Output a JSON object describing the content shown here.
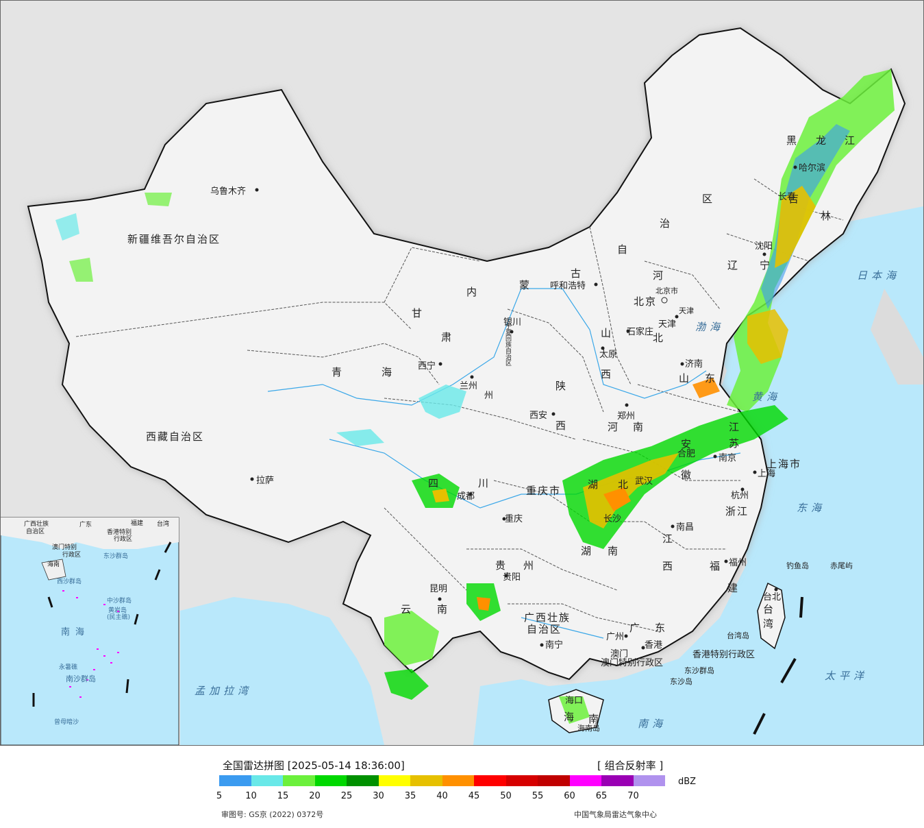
{
  "footer": {
    "title": "全国雷达拼图 [2025-05-14 18:36:00]",
    "product": "[ 组合反射率 ]",
    "unit": "dBZ",
    "approval": "审图号: GS京 (2022) 0372号",
    "source": "中国气象局雷达气象中心"
  },
  "legend": {
    "colors": [
      "#3b9bf0",
      "#69e8e8",
      "#6cf03c",
      "#00d800",
      "#009000",
      "#ffff00",
      "#e6c000",
      "#ff9000",
      "#ff0000",
      "#d60000",
      "#c00000",
      "#ff00ff",
      "#9a00b4",
      "#b092ee"
    ],
    "ticks": [
      "5",
      "10",
      "15",
      "20",
      "25",
      "30",
      "35",
      "40",
      "45",
      "50",
      "55",
      "60",
      "65",
      "70"
    ]
  },
  "regions": {
    "xinjiang": "新疆维吾尔自治区",
    "xizang": "西藏自治区",
    "qinghai_1": "青",
    "qinghai_2": "海",
    "gansu_1": "甘",
    "gansu_2": "肃",
    "neimenggu_1": "内",
    "neimenggu_2": "蒙",
    "neimenggu_3": "古",
    "neimenggu_4": "自",
    "neimenggu_5": "治",
    "neimenggu_6": "区",
    "heilongjiang_1": "黑",
    "heilongjiang_2": "龙",
    "heilongjiang_3": "江",
    "jilin_1": "吉",
    "jilin_2": "林",
    "liaoning_1": "辽",
    "liaoning_2": "宁",
    "hebei_1": "河",
    "hebei_2": "北",
    "shanxi_1": "山",
    "shanxi_2": "西",
    "shaanxi_1": "陕",
    "shaanxi_2": "西",
    "shandong_1": "山",
    "shandong_2": "东",
    "henan_1": "河",
    "henan_2": "南",
    "sichuan_1": "四",
    "sichuan_2": "川",
    "hubei_1": "湖",
    "hubei_2": "北",
    "anhui_1": "安",
    "anhui_2": "徽",
    "jiangsu_1": "江",
    "jiangsu_2": "苏",
    "zhejiang": "浙江",
    "jiangxi_1": "江",
    "jiangxi_2": "西",
    "hunan_1": "湖",
    "hunan_2": "南",
    "guizhou_1": "贵",
    "guizhou_2": "州",
    "yunnan_1": "云",
    "yunnan_2": "南",
    "guangxi_1": "广西壮族",
    "guangxi_2": "自治区",
    "guangdong_1": "广",
    "guangdong_2": "东",
    "fujian_1": "福",
    "fujian_2": "建",
    "taiwan_1": "台",
    "taiwan_2": "湾",
    "hainan_1": "海",
    "hainan_2": "南",
    "ningxia": "宁夏回族自治区",
    "gansu_3": "州",
    "chongqing": "重庆市",
    "shanghai": "上海市",
    "hongkong": "香港特别行政区",
    "macau": "澳门特别行政区",
    "beijing_city": "北京市",
    "tianjin_city": "天津"
  },
  "cities": {
    "urumqi": "乌鲁木齐",
    "lhasa": "拉萨",
    "xining": "西宁",
    "lanzhou": "兰州",
    "yinchuan": "银川",
    "hohhot": "呼和浩特",
    "beijing": "北京",
    "tianjin": "天津",
    "shijiazhuang": "石家庄",
    "taiyuan": "太原",
    "jinan": "济南",
    "zhengzhou": "郑州",
    "xian": "西安",
    "chengdu": "成都",
    "chongqing": "重庆",
    "wuhan": "武汉",
    "hefei": "合肥",
    "nanjing": "南京",
    "shanghai": "上海",
    "hangzhou": "杭州",
    "nanchang": "南昌",
    "changsha": "长沙",
    "fuzhou": "福州",
    "guiyang": "贵阳",
    "kunming": "昆明",
    "nanning": "南宁",
    "guangzhou": "广州",
    "hongkong": "香港",
    "macau": "澳门",
    "haikou": "海口",
    "taipei": "台北",
    "harbin": "哈尔滨",
    "changchun": "长春",
    "shenyang": "沈阳",
    "haikou_island": "海南岛",
    "taiwan_island": "台湾岛",
    "diaoyu": "钓鱼岛",
    "chiwei": "赤尾屿",
    "dongsha_islands": "东沙群岛",
    "dongsha_island": "东沙岛"
  },
  "seas": {
    "bohai": "渤海",
    "huanghai": "黄海",
    "donghai": "东海",
    "nanhai": "南海",
    "japan": "日本海",
    "pacific": "太平洋",
    "bengal": "孟加拉湾"
  },
  "inset": {
    "nanhai": "南海",
    "zhongsha": "中沙群岛",
    "huangyan": "黄岩岛",
    "minzhu": "(民主礁)",
    "xisha": "西沙群岛",
    "nansha": "南沙群岛",
    "yongshu": "永暑礁",
    "zengmu": "曾母暗沙",
    "guangxi": "广西壮族",
    "guangxi2": "自治区",
    "guangdong": "广东",
    "fujian": "福建",
    "taiwan": "台湾",
    "hainan": "海南",
    "hk": "香港特别",
    "hk2": "行政区",
    "macau": "澳门特别",
    "macau2": "行政区",
    "dongsha": "东沙群岛"
  }
}
